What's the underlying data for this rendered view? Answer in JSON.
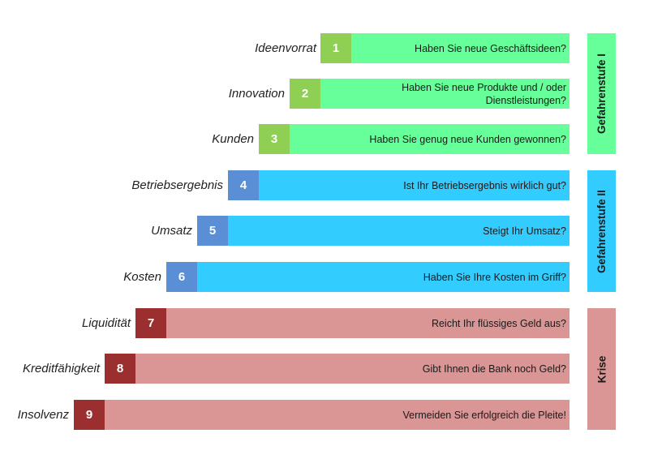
{
  "rows": [
    {
      "label": "Ideenvorrat",
      "number": "1",
      "question": "Haben Sie neue Geschäftsideen?"
    },
    {
      "label": "Innovation",
      "number": "2",
      "question": "Haben Sie neue Produkte und / oder Dienstleistungen?"
    },
    {
      "label": "Kunden",
      "number": "3",
      "question": "Haben Sie genug neue Kunden gewonnen?"
    },
    {
      "label": "Betriebsergebnis",
      "number": "4",
      "question": "Ist Ihr Betriebsergebnis wirklich gut?"
    },
    {
      "label": "Umsatz",
      "number": "5",
      "question": "Steigt Ihr Umsatz?"
    },
    {
      "label": "Kosten",
      "number": "6",
      "question": "Haben Sie Ihre Kosten im Griff?"
    },
    {
      "label": "Liquidität",
      "number": "7",
      "question": "Reicht Ihr flüssiges Geld aus?"
    },
    {
      "label": "Kreditfähigkeit",
      "number": "8",
      "question": "Gibt Ihnen die Bank noch Geld?"
    },
    {
      "label": "Insolvenz",
      "number": "9",
      "question": "Vermeiden Sie erfolgreich die Pleite!"
    }
  ],
  "stages": [
    {
      "label": "Gefahrenstufe I",
      "color": "#66ff99"
    },
    {
      "label": "Gefahrenstufe II",
      "color": "#33ccff"
    },
    {
      "label": "Krise",
      "color": "#d99694"
    }
  ],
  "colors": {
    "stage1_number": "#8fcf54",
    "stage1_bar": "#66ff99",
    "stage2_number": "#5a8fd6",
    "stage2_bar": "#33ccff",
    "stage3_number": "#9b2f2f",
    "stage3_bar": "#d99694"
  }
}
